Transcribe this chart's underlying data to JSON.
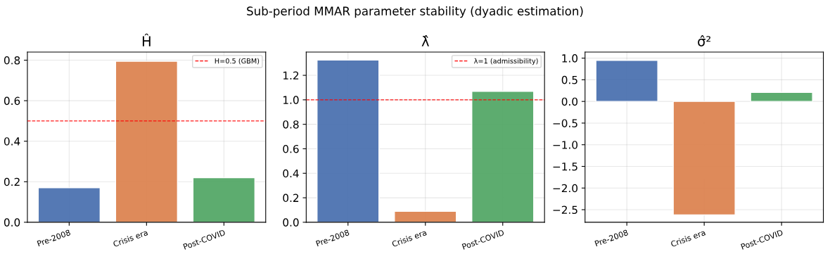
{
  "chart_data": [
    {
      "type": "bar",
      "title": "Ĥ",
      "annotations": [
        "Sub-period MMAR parameter stability (dyadic estimation)"
      ],
      "categories": [
        "Pre-2008",
        "Crisis era",
        "Post-COVID"
      ],
      "values": [
        0.17,
        0.795,
        0.22
      ],
      "colors": [
        "#4c72b0",
        "#dd8452",
        "#55a868"
      ],
      "ylim": [
        0,
        0.84
      ],
      "yticks": [
        {
          "value": 0,
          "label": "0.0"
        },
        0.2,
        0.4,
        0.6,
        0.8
      ],
      "grid": true,
      "legend": "top right",
      "ref_lines": [
        {
          "axis": "y",
          "value": 0.5,
          "label": "H=0.5 (GBM)",
          "color": "#ff0000",
          "line_style": "dashed"
        }
      ]
    },
    {
      "type": "bar",
      "title": "λ̂",
      "categories": [
        "Pre-2008",
        "Crisis era",
        "Post-COVID"
      ],
      "values": [
        1.325,
        0.09,
        1.07
      ],
      "colors": [
        "#4c72b0",
        "#dd8452",
        "#55a868"
      ],
      "ylim": [
        0,
        1.39
      ],
      "yticks": [
        {
          "value": 0,
          "label": "0.0"
        },
        0.2,
        0.4,
        0.6,
        0.8,
        {
          "value": 1,
          "label": "1.0"
        },
        1.2
      ],
      "grid": true,
      "legend": "top right",
      "ref_lines": [
        {
          "axis": "y",
          "value": 1,
          "label": "λ=1 (admissibility)",
          "color": "#ff0000",
          "line_style": "dashed"
        }
      ]
    },
    {
      "type": "bar",
      "title": "σ̂²",
      "categories": [
        "Pre-2008",
        "Crisis era",
        "Post-COVID"
      ],
      "values": [
        0.95,
        -2.62,
        0.21
      ],
      "colors": [
        "#4c72b0",
        "#dd8452",
        "#55a868"
      ],
      "ylim": [
        -2.79,
        1.14
      ],
      "yticks": [
        {
          "value": -2.5,
          "label": "−2.5"
        },
        {
          "value": -2,
          "label": "−2.0"
        },
        {
          "value": -1.5,
          "label": "−1.5"
        },
        {
          "value": -1,
          "label": "−1.0"
        },
        {
          "value": -0.5,
          "label": "−0.5"
        },
        {
          "value": 0,
          "label": "0.0"
        },
        0.5,
        {
          "value": 1,
          "label": "1.0"
        }
      ],
      "grid": true
    }
  ]
}
